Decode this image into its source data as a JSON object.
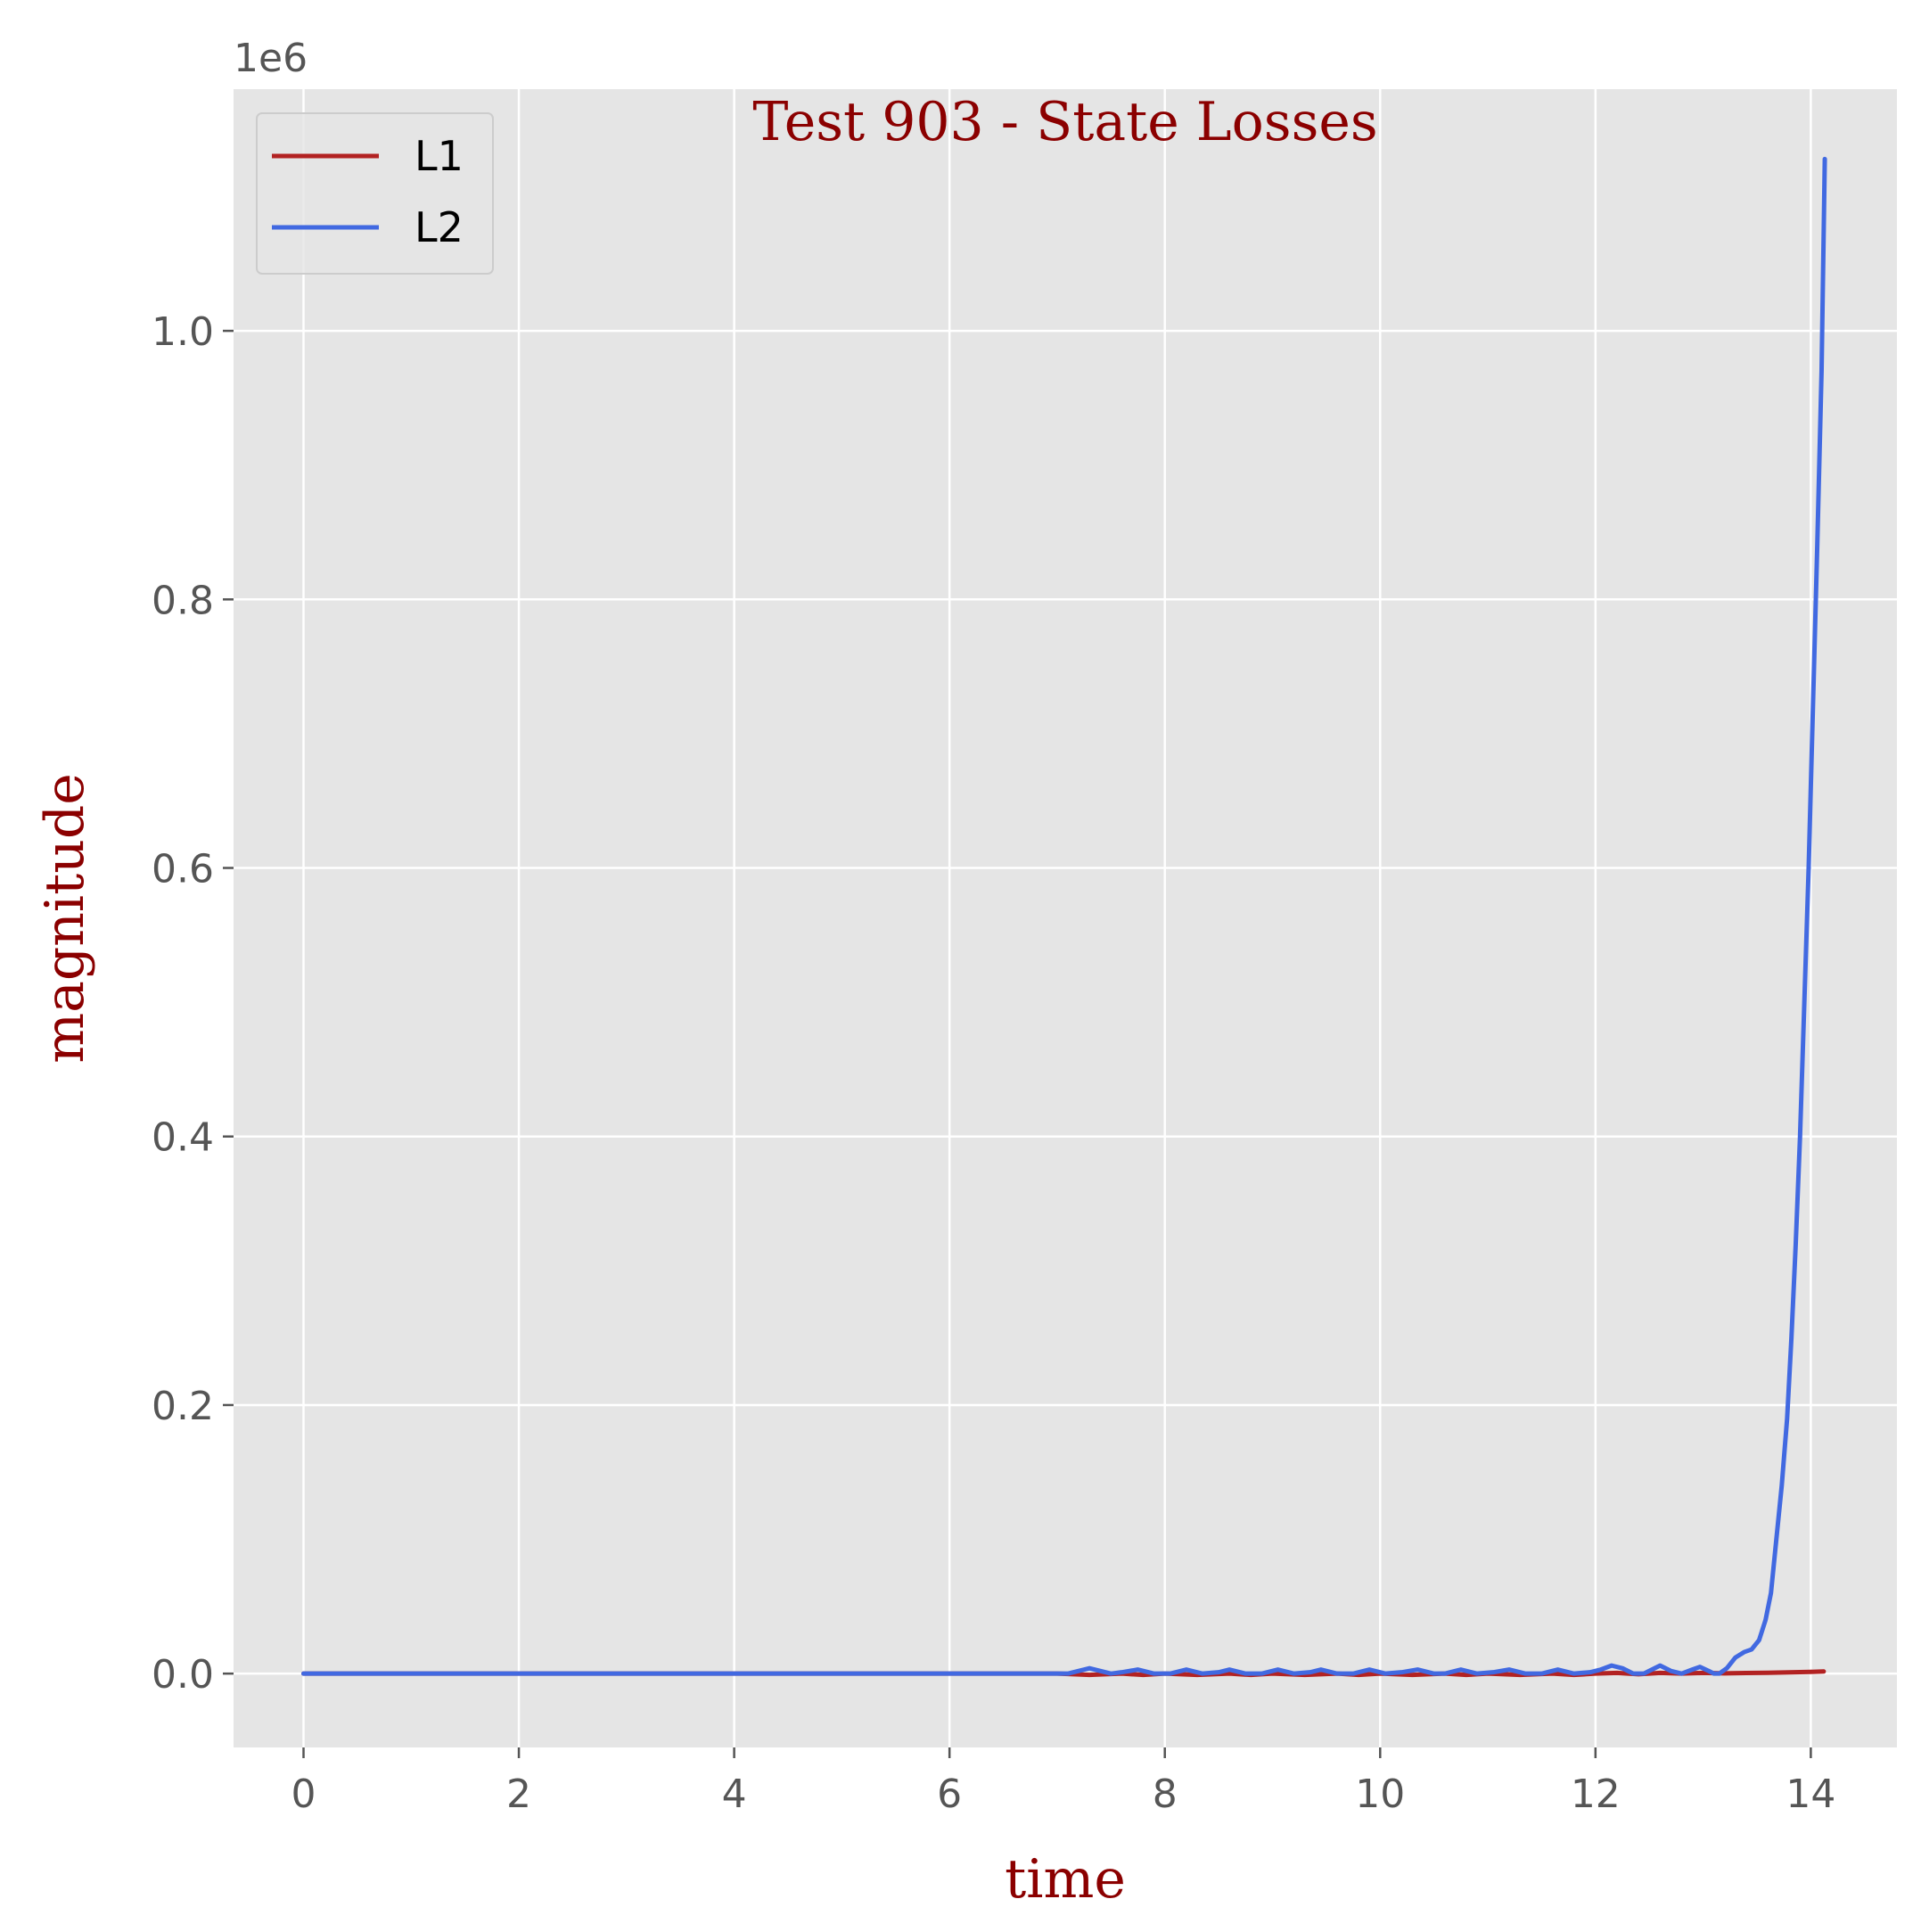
{
  "chart_data": {
    "type": "line",
    "title": "Test 903 - State Losses",
    "xlabel": "time",
    "ylabel": "magnitude",
    "y_offset_text": "1e6",
    "y_scale": 1000000,
    "xlim": [
      -0.65,
      14.8
    ],
    "ylim": [
      -0.055,
      1.18
    ],
    "x_ticks": [
      0,
      2,
      4,
      6,
      8,
      10,
      12,
      14
    ],
    "x_tick_labels": [
      "0",
      "2",
      "4",
      "6",
      "8",
      "10",
      "12",
      "14"
    ],
    "y_ticks": [
      0.0,
      0.2,
      0.4,
      0.6,
      0.8,
      1.0
    ],
    "y_tick_labels": [
      "0.0",
      "0.2",
      "0.4",
      "0.6",
      "0.8",
      "1.0"
    ],
    "grid": true,
    "legend_position": "top-left",
    "colors": {
      "background": "#e5e5e5",
      "grid": "#ffffff",
      "title": "#8b0000",
      "tick": "#555555"
    },
    "series": [
      {
        "name": "L1",
        "color": "#b22222",
        "points": [
          [
            0.0,
            0.0
          ],
          [
            1.0,
            0.0
          ],
          [
            2.0,
            0.0
          ],
          [
            3.0,
            0.0
          ],
          [
            4.0,
            0.0
          ],
          [
            5.0,
            0.0
          ],
          [
            6.0,
            0.0
          ],
          [
            7.0,
            0.0
          ],
          [
            7.3,
            -0.001
          ],
          [
            7.6,
            0.0
          ],
          [
            7.8,
            -0.001
          ],
          [
            8.0,
            0.0
          ],
          [
            8.3,
            -0.001
          ],
          [
            8.6,
            0.0
          ],
          [
            8.8,
            -0.001
          ],
          [
            9.0,
            0.0
          ],
          [
            9.3,
            -0.001
          ],
          [
            9.6,
            0.0
          ],
          [
            9.8,
            -0.001
          ],
          [
            10.0,
            0.0
          ],
          [
            10.3,
            -0.001
          ],
          [
            10.6,
            0.0
          ],
          [
            10.8,
            -0.001
          ],
          [
            11.0,
            0.0
          ],
          [
            11.3,
            -0.001
          ],
          [
            11.6,
            0.0
          ],
          [
            11.8,
            -0.001
          ],
          [
            12.0,
            0.0
          ],
          [
            12.2,
            0.0005
          ],
          [
            12.4,
            -0.0005
          ],
          [
            12.6,
            0.0005
          ],
          [
            12.8,
            0.0
          ],
          [
            13.0,
            0.0005
          ],
          [
            13.2,
            0.0002
          ],
          [
            13.4,
            0.0004
          ],
          [
            13.6,
            0.0006
          ],
          [
            13.8,
            0.0009
          ],
          [
            14.0,
            0.0013
          ],
          [
            14.12,
            0.0016
          ]
        ]
      },
      {
        "name": "L2",
        "color": "#4169e1",
        "points": [
          [
            0.0,
            0.0
          ],
          [
            1.0,
            0.0
          ],
          [
            2.0,
            0.0
          ],
          [
            3.0,
            0.0
          ],
          [
            4.0,
            0.0
          ],
          [
            5.0,
            0.0
          ],
          [
            6.0,
            0.0
          ],
          [
            7.0,
            0.0
          ],
          [
            7.1,
            0.0
          ],
          [
            7.2,
            0.002
          ],
          [
            7.3,
            0.004
          ],
          [
            7.4,
            0.002
          ],
          [
            7.5,
            0.0
          ],
          [
            7.6,
            0.001
          ],
          [
            7.75,
            0.003
          ],
          [
            7.9,
            0.0
          ],
          [
            8.05,
            0.0
          ],
          [
            8.2,
            0.003
          ],
          [
            8.35,
            0.0
          ],
          [
            8.5,
            0.001
          ],
          [
            8.6,
            0.003
          ],
          [
            8.75,
            0.0
          ],
          [
            8.9,
            0.0
          ],
          [
            9.05,
            0.003
          ],
          [
            9.2,
            0.0
          ],
          [
            9.35,
            0.001
          ],
          [
            9.45,
            0.003
          ],
          [
            9.6,
            0.0
          ],
          [
            9.75,
            0.0
          ],
          [
            9.9,
            0.003
          ],
          [
            10.05,
            0.0
          ],
          [
            10.2,
            0.001
          ],
          [
            10.35,
            0.003
          ],
          [
            10.5,
            0.0
          ],
          [
            10.6,
            0.0
          ],
          [
            10.75,
            0.003
          ],
          [
            10.9,
            0.0
          ],
          [
            11.05,
            0.001
          ],
          [
            11.2,
            0.003
          ],
          [
            11.35,
            0.0
          ],
          [
            11.5,
            0.0
          ],
          [
            11.65,
            0.003
          ],
          [
            11.8,
            0.0
          ],
          [
            11.95,
            0.001
          ],
          [
            12.05,
            0.003
          ],
          [
            12.15,
            0.006
          ],
          [
            12.25,
            0.004
          ],
          [
            12.35,
            0.0
          ],
          [
            12.45,
            0.0
          ],
          [
            12.55,
            0.004
          ],
          [
            12.6,
            0.006
          ],
          [
            12.7,
            0.002
          ],
          [
            12.8,
            0.0
          ],
          [
            12.9,
            0.003
          ],
          [
            12.97,
            0.005
          ],
          [
            13.05,
            0.002
          ],
          [
            13.1,
            0.0
          ],
          [
            13.15,
            0.0
          ],
          [
            13.22,
            0.004
          ],
          [
            13.3,
            0.012
          ],
          [
            13.38,
            0.016
          ],
          [
            13.45,
            0.018
          ],
          [
            13.52,
            0.025
          ],
          [
            13.58,
            0.04
          ],
          [
            13.63,
            0.06
          ],
          [
            13.68,
            0.1
          ],
          [
            13.73,
            0.14
          ],
          [
            13.78,
            0.19
          ],
          [
            13.82,
            0.25
          ],
          [
            13.86,
            0.32
          ],
          [
            13.9,
            0.4
          ],
          [
            13.94,
            0.5
          ],
          [
            13.98,
            0.6
          ],
          [
            14.02,
            0.72
          ],
          [
            14.06,
            0.84
          ],
          [
            14.1,
            0.97
          ],
          [
            14.13,
            1.128
          ]
        ]
      }
    ]
  }
}
